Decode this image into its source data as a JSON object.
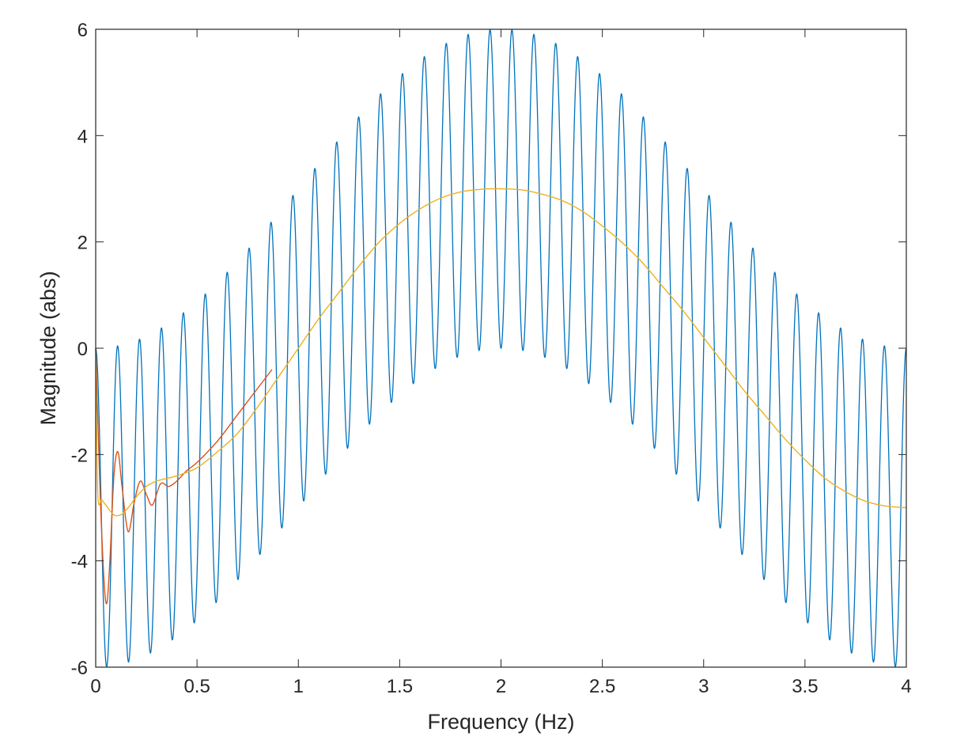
{
  "chart_data": {
    "type": "line",
    "title": "",
    "xlabel": "Frequency (Hz)",
    "ylabel": "Magnitude (abs)",
    "xlim": [
      0,
      4
    ],
    "ylim": [
      -6,
      6
    ],
    "x_ticks": [
      0,
      0.5,
      1,
      1.5,
      2,
      2.5,
      3,
      3.5,
      4
    ],
    "x_tick_labels": [
      "0",
      "0.5",
      "1",
      "1.5",
      "2",
      "2.5",
      "3",
      "3.5",
      "4"
    ],
    "y_ticks": [
      -6,
      -4,
      -2,
      0,
      2,
      4,
      6
    ],
    "y_tick_labels": [
      "-6",
      "-4",
      "-2",
      "0",
      "2",
      "4",
      "6"
    ],
    "grid": false,
    "legend": "none",
    "series": [
      {
        "color": "#0072BD",
        "description_values": {
          "x_start": 0,
          "x_end": 4,
          "peaks_per_hz": 9.25,
          "envelope_center_amplitude": 3.0,
          "oscillation_amplitude": 3.0
        },
        "x": [
          0,
          0.108,
          0.216,
          0.324,
          0.432,
          0.541,
          0.649,
          0.757,
          0.865,
          0.973,
          1.081,
          1.189,
          1.297,
          1.405,
          1.514,
          1.622,
          1.73,
          1.838,
          1.946,
          2.054,
          2.162,
          2.27,
          2.378,
          2.486,
          2.595,
          2.703,
          2.811,
          2.919,
          3.027,
          3.135,
          3.243,
          3.351,
          3.459,
          3.568,
          3.676,
          3.784,
          3.892,
          4.0
        ],
        "peak_values": [
          0,
          0.05,
          0.15,
          0.35,
          0.65,
          1.0,
          1.4,
          1.85,
          2.35,
          2.85,
          3.35,
          3.85,
          4.3,
          4.75,
          5.15,
          5.45,
          5.72,
          5.9,
          6.0,
          6.0,
          5.9,
          5.75,
          5.5,
          5.2,
          4.82,
          4.4,
          3.92,
          3.42,
          2.92,
          2.42,
          1.92,
          1.45,
          1.05,
          0.7,
          0.4,
          0.18,
          0.05,
          0
        ]
      },
      {
        "color": "#D95319",
        "x": [
          0,
          0.02,
          0.04,
          0.055,
          0.07,
          0.09,
          0.11,
          0.13,
          0.16,
          0.19,
          0.22,
          0.25,
          0.28,
          0.32,
          0.36,
          0.4,
          0.45,
          0.5,
          0.6,
          0.7,
          0.8,
          0.87
        ],
        "y": [
          0,
          -2.5,
          -4.3,
          -4.8,
          -4.0,
          -2.4,
          -1.95,
          -2.6,
          -3.45,
          -2.9,
          -2.5,
          -2.75,
          -2.95,
          -2.55,
          -2.6,
          -2.5,
          -2.3,
          -2.15,
          -1.75,
          -1.25,
          -0.75,
          -0.4
        ]
      },
      {
        "color": "#EDB120",
        "x": [
          0,
          0.01,
          0.03,
          0.05,
          0.08,
          0.1,
          0.13,
          0.16,
          0.2,
          0.25,
          0.3,
          0.35,
          0.4,
          0.5,
          0.6,
          0.7,
          0.8,
          0.9,
          1.0,
          1.1,
          1.2,
          1.3,
          1.4,
          1.5,
          1.6,
          1.7,
          1.8,
          1.9,
          2.0,
          2.1,
          2.2,
          2.3,
          2.4,
          2.5,
          2.6,
          2.7,
          2.8,
          2.9,
          3.0,
          3.1,
          3.2,
          3.3,
          3.4,
          3.5,
          3.6,
          3.7,
          3.8,
          3.9,
          4.0
        ],
        "y": [
          0,
          -2.7,
          -2.85,
          -2.95,
          -3.1,
          -3.15,
          -3.12,
          -3.0,
          -2.8,
          -2.6,
          -2.5,
          -2.45,
          -2.4,
          -2.25,
          -1.95,
          -1.6,
          -1.1,
          -0.55,
          0.0,
          0.55,
          1.05,
          1.55,
          2.0,
          2.35,
          2.62,
          2.82,
          2.94,
          2.99,
          3.0,
          2.98,
          2.9,
          2.78,
          2.58,
          2.3,
          1.98,
          1.6,
          1.15,
          0.7,
          0.2,
          -0.3,
          -0.8,
          -1.25,
          -1.7,
          -2.1,
          -2.45,
          -2.7,
          -2.88,
          -2.97,
          -3.0
        ]
      }
    ]
  }
}
